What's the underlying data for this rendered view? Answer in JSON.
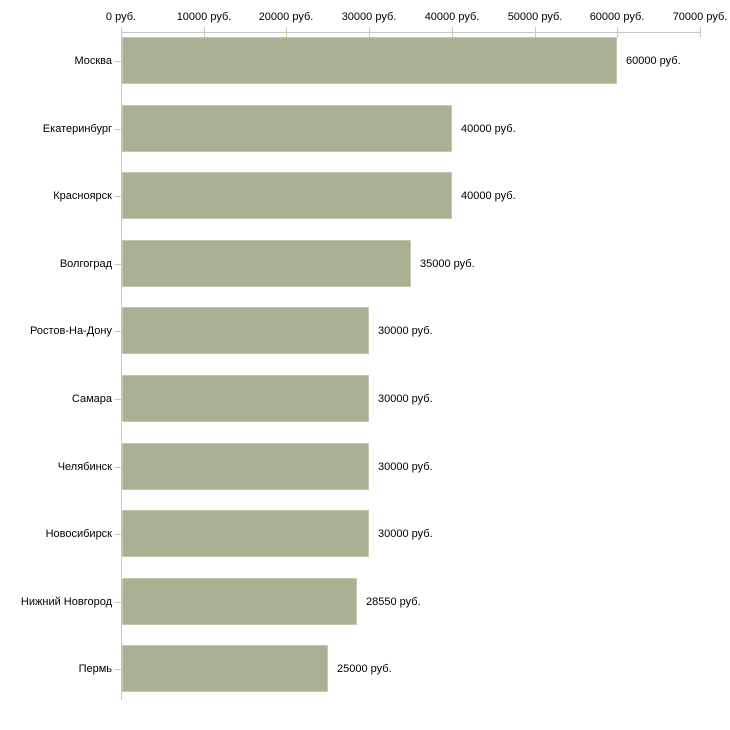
{
  "chart_data": {
    "type": "bar",
    "orientation": "horizontal",
    "title": "",
    "xlabel": "",
    "ylabel": "",
    "categories": [
      "Москва",
      "Екатеринбург",
      "Красноярск",
      "Волгоград",
      "Ростов-На-Дону",
      "Самара",
      "Челябинск",
      "Новосибирск",
      "Нижний Новгород",
      "Пермь"
    ],
    "values": [
      60000,
      40000,
      40000,
      35000,
      30000,
      30000,
      30000,
      30000,
      28550,
      25000
    ],
    "bar_value_labels": [
      "60000 руб.",
      "40000 руб.",
      "40000 руб.",
      "35000 руб.",
      "30000 руб.",
      "30000 руб.",
      "30000 руб.",
      "30000 руб.",
      "28550 руб.",
      "25000 руб."
    ],
    "xlim": [
      0,
      70000
    ],
    "x_ticks": [
      0,
      10000,
      20000,
      30000,
      40000,
      50000,
      60000,
      70000
    ],
    "x_tick_labels": [
      "0 руб.",
      "10000 руб.",
      "20000 руб.",
      "30000 руб.",
      "40000 руб.",
      "50000 руб.",
      "60000 руб.",
      "70000 руб."
    ],
    "unit": "руб.",
    "axis_position": "top",
    "grid": false,
    "legend": false,
    "colors": {
      "bar_fill": "#a9b194",
      "bar_border": "#c3c8ae",
      "axis_line": "#c8c8c8",
      "tick_mark": "#c6cc9c",
      "label_text": "#000000",
      "background": "#ffffff"
    }
  }
}
